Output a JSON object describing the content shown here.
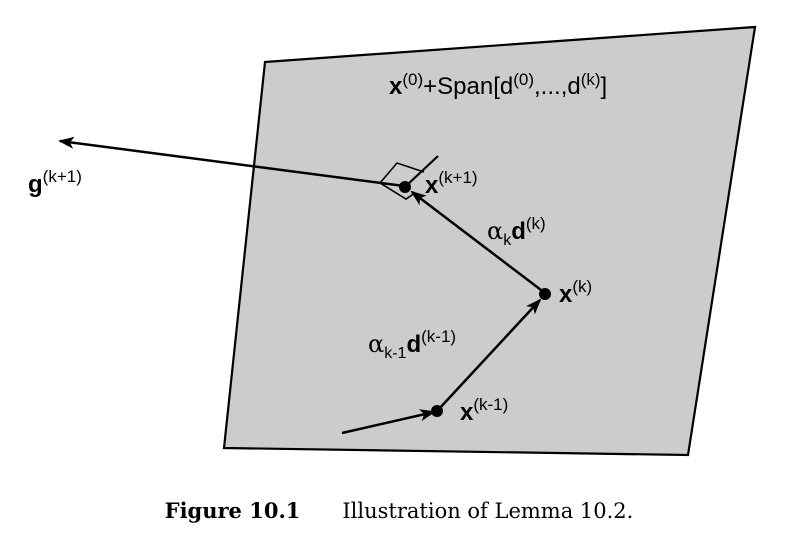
{
  "labels": {
    "span": {
      "x": "x",
      "x_sup": "(0)",
      "plus_span": "+Span[d",
      "d0_sup": "(0)",
      "mid": ",...,d",
      "dk_sup": "(k)",
      "close": "]"
    },
    "g": {
      "base": "g",
      "sup": "(k+1)"
    },
    "x_k1": {
      "base": "x",
      "sup": "(k+1)"
    },
    "x_k": {
      "base": "x",
      "sup": "(k)"
    },
    "x_km1": {
      "base": "x",
      "sup": "(k-1)"
    },
    "alpha_k_d": {
      "alpha": "α",
      "alpha_sub": "k",
      "d": "d",
      "sup": "(k)"
    },
    "alpha_km1_d": {
      "alpha": "α",
      "alpha_sub": "k-1",
      "d": "d",
      "sup": "(k-1)"
    }
  },
  "caption": {
    "label": "Figure 10.1",
    "text": "Illustration of Lemma 10.2."
  },
  "colors": {
    "plane_fill": "#cccccc",
    "stroke": "#000000"
  }
}
